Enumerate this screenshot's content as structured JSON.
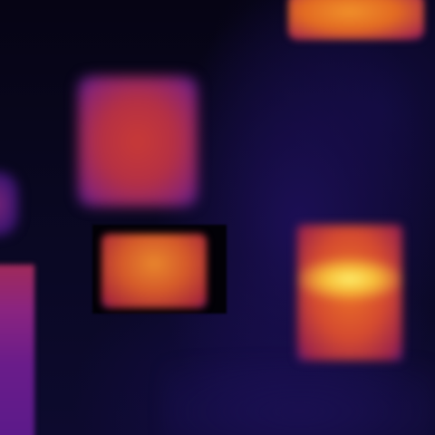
{
  "image": {
    "kind": "thermal-camera-frame",
    "palette": [
      "#07051a",
      "#1c0f55",
      "#5a1c7a",
      "#a9284a",
      "#e26a22",
      "#f7c03a",
      "#fdf070"
    ],
    "hotspots": [
      {
        "name": "top-right-hotspot",
        "color": "#e26a22"
      },
      {
        "name": "upper-left-hotspot",
        "color": "#b53044"
      },
      {
        "name": "mid-left-hotspot",
        "color": "#d4592a"
      },
      {
        "name": "right-hotspot",
        "color": "#f7c03a"
      },
      {
        "name": "bottom-left-hotspot",
        "color": "#6a1c8a"
      }
    ]
  }
}
